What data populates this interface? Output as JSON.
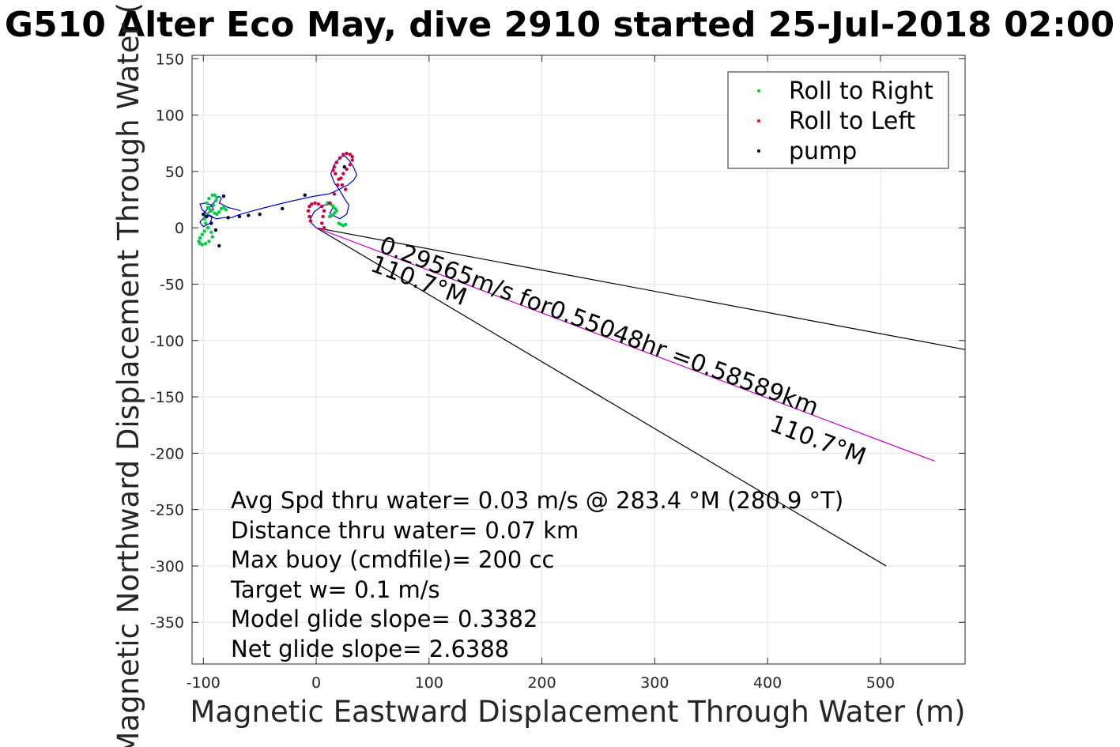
{
  "chart_data": {
    "type": "scatter",
    "title": "G510 Alter Eco May, dive 2910 started 25-Jul-2018 02:00",
    "xlabel": "Magnetic Eastward Displacement Through Water (m)",
    "ylabel": "Magnetic Northward Displacement Through Water (m)",
    "xlim": [
      -110,
      575
    ],
    "ylim": [
      -387,
      153
    ],
    "xticks": [
      -100,
      0,
      100,
      200,
      300,
      400,
      500
    ],
    "yticks": [
      150,
      100,
      50,
      0,
      -50,
      -100,
      -150,
      -200,
      -250,
      -300,
      -350
    ],
    "grid": true,
    "legend_position": "top-right",
    "legend": [
      {
        "label": "Roll to Right",
        "color": "#00dd00"
      },
      {
        "label": "Roll to Left",
        "color": "#ff0000"
      },
      {
        "label": "pump",
        "color": "#000000"
      }
    ],
    "track": {
      "name": "",
      "color": "#0000cc",
      "x": [
        0,
        -6,
        -2,
        6,
        13,
        15,
        12,
        17,
        21,
        27,
        29,
        25,
        21,
        16,
        13,
        16,
        21,
        25,
        29,
        33,
        36,
        33,
        28,
        22,
        16,
        11,
        -2,
        -25,
        -45,
        -60,
        -70,
        -75,
        -82,
        -88,
        -94,
        -99,
        -96,
        -92,
        -98,
        -103,
        -101,
        -96,
        -92,
        -94,
        -100,
        -103,
        -99,
        -95,
        -91,
        -93,
        -89,
        -86,
        -84,
        -86,
        -82,
        -78,
        -74,
        -70,
        -67
      ],
      "y": [
        0,
        6,
        14,
        20,
        21,
        18,
        13,
        10,
        8,
        12,
        20,
        26,
        33,
        40,
        48,
        56,
        62,
        64,
        60,
        54,
        47,
        42,
        38,
        35,
        32,
        30,
        28,
        23,
        18,
        14,
        11,
        9,
        9,
        8,
        10,
        14,
        17,
        20,
        22,
        21,
        16,
        12,
        10,
        4,
        1,
        5,
        10,
        14,
        16,
        20,
        24,
        28,
        26,
        22,
        20,
        18,
        17,
        16,
        15
      ]
    },
    "roll_right": {
      "color": "#00cc44",
      "x": [
        -96,
        -99,
        -101,
        -103,
        -104,
        -103,
        -101,
        -98,
        -95,
        -92,
        -93,
        -96,
        -98,
        -99,
        -97,
        -94,
        -91,
        -89,
        -88,
        -90,
        -92,
        -95,
        -97,
        -96,
        -93,
        -90,
        -88,
        -86,
        -84,
        -82,
        -80,
        10,
        13,
        15,
        17,
        18,
        16,
        14,
        12,
        20,
        22,
        24,
        26
      ],
      "y": [
        0,
        -3,
        -6,
        -9,
        -12,
        -14,
        -15,
        -14,
        -12,
        -8,
        -4,
        0,
        4,
        8,
        12,
        16,
        20,
        24,
        27,
        29,
        29,
        26,
        22,
        18,
        15,
        13,
        12,
        14,
        17,
        18,
        16,
        22,
        21,
        19,
        17,
        15,
        13,
        11,
        10,
        4,
        3,
        2,
        3
      ]
    },
    "roll_left": {
      "color": "#cc0044",
      "x": [
        -5,
        -6,
        -7,
        -6,
        -4,
        -1,
        2,
        5,
        7,
        6,
        5,
        7,
        12,
        16,
        19,
        22,
        24,
        27,
        30,
        32,
        32,
        30,
        27,
        24,
        21,
        18,
        16,
        15,
        17,
        20,
        23,
        26
      ],
      "y": [
        6,
        10,
        15,
        19,
        21,
        22,
        21,
        19,
        15,
        10,
        4,
        0,
        22,
        30,
        38,
        44,
        48,
        52,
        56,
        60,
        63,
        65,
        66,
        65,
        62,
        58,
        54,
        51,
        48,
        43,
        38,
        34
      ]
    },
    "pump": {
      "color": "#000033",
      "x": [
        -100,
        -97,
        -93,
        -89,
        -86,
        -82,
        -78,
        -68,
        -60,
        -50,
        -30,
        -10,
        25
      ],
      "y": [
        12,
        10,
        4,
        -2,
        -16,
        28,
        9,
        10,
        11,
        12,
        17,
        29,
        54
      ]
    },
    "lines": [
      {
        "name": "upper",
        "color": "#000000",
        "x": [
          0,
          575
        ],
        "y": [
          0,
          -108
        ]
      },
      {
        "name": "lower",
        "color": "#000000",
        "x": [
          0,
          505
        ],
        "y": [
          0,
          -300
        ]
      },
      {
        "name": "current",
        "color": "#cc00cc",
        "x": [
          0,
          548
        ],
        "y": [
          0,
          -207
        ]
      }
    ],
    "annotations": {
      "speed": "0.29565m/s for0.55048hr =0.58589km",
      "heading_near": "110.7°M",
      "heading_far": "110.7°M"
    },
    "stats": [
      "Avg Spd thru water=  0.03 m/s @ 283.4 °M (280.9 °T)",
      "Distance thru water=  0.07 km",
      "Max buoy (cmdfile)= 200 cc",
      "Target w= 0.1 m/s",
      "Model glide slope= 0.3382",
      "Net glide slope= 2.6388"
    ]
  }
}
